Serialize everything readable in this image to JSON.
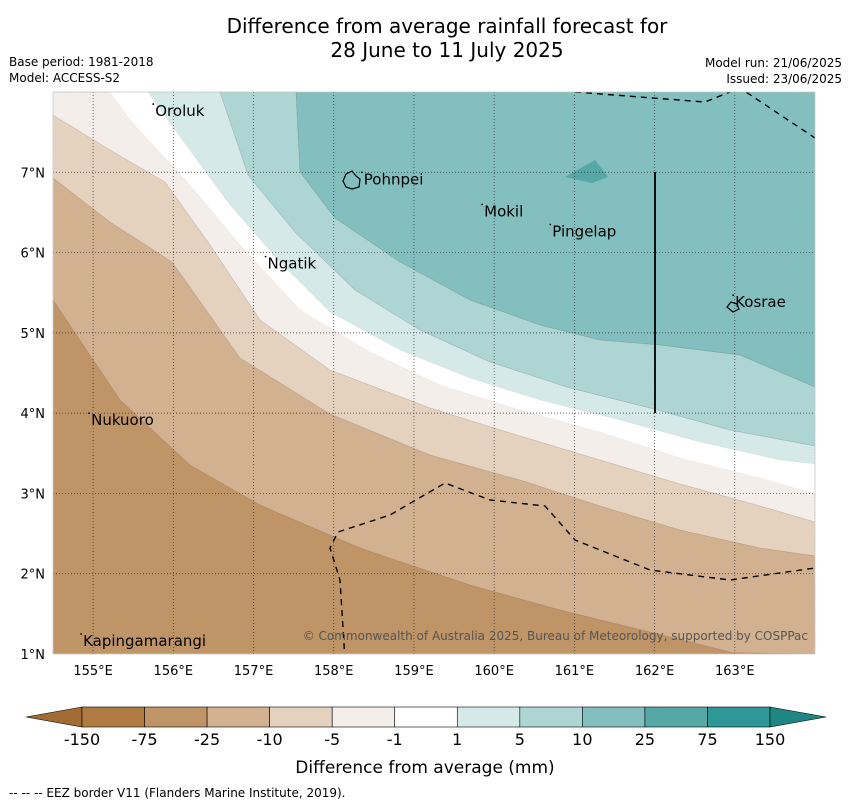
{
  "title_line1": "Difference from average rainfall forecast for",
  "title_line2": "28 June to 11 July 2025",
  "meta": {
    "base_period": "Base period: 1981-2018",
    "model": "Model: ACCESS-S2",
    "model_run": "Model run: 21/06/2025",
    "issued": "Issued: 23/06/2025"
  },
  "map": {
    "lon_range": [
      154.5,
      164.0
    ],
    "lat_range": [
      1.0,
      8.0
    ],
    "lon_ticks": [
      "155°E",
      "156°E",
      "157°E",
      "158°E",
      "159°E",
      "160°E",
      "161°E",
      "162°E",
      "163°E"
    ],
    "lat_ticks": [
      "1°N",
      "2°N",
      "3°N",
      "4°N",
      "5°N",
      "6°N",
      "7°N"
    ],
    "places": [
      {
        "name": "Oroluk",
        "lon": 155.75,
        "lat": 7.7
      },
      {
        "name": "Pohnpei",
        "lon": 158.35,
        "lat": 6.85
      },
      {
        "name": "Mokil",
        "lon": 159.85,
        "lat": 6.45
      },
      {
        "name": "Pingelap",
        "lon": 160.7,
        "lat": 6.2
      },
      {
        "name": "Ngatik",
        "lon": 157.15,
        "lat": 5.8
      },
      {
        "name": "Kosrae",
        "lon": 162.98,
        "lat": 5.32
      },
      {
        "name": "Nukuoro",
        "lon": 154.95,
        "lat": 3.85
      },
      {
        "name": "Kapingamarangi",
        "lon": 154.85,
        "lat": 1.1
      }
    ],
    "copyright": "© Commonwealth of Australia 2025, Bureau of Meteorology, supported by COSPPac"
  },
  "colorbar": {
    "ticks": [
      "-150",
      "-75",
      "-25",
      "-10",
      "-5",
      "-1",
      "1",
      "5",
      "10",
      "25",
      "75",
      "150"
    ],
    "colors": [
      "#b07a43",
      "#bf9467",
      "#d2b190",
      "#e4d2bf",
      "#f3eee9",
      "#ffffff",
      "#d5e9e8",
      "#acd5d3",
      "#82bfbe",
      "#55a8a6",
      "#2e9896"
    ],
    "extend_low_color": "#a26b36",
    "extend_high_color": "#1f8683",
    "label": "Difference from average (mm)"
  },
  "footer": "--  --  -- EEZ border V11 (Flanders Marine Institute, 2019)."
}
